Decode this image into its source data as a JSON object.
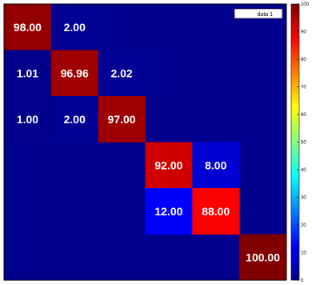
{
  "chart_data": {
    "type": "heatmap",
    "title": "",
    "xlabel": "",
    "ylabel": "",
    "rows": 6,
    "cols": 6,
    "background_value": 0,
    "cells": [
      {
        "row": 0,
        "col": 0,
        "value": 98.0,
        "label": "98.00"
      },
      {
        "row": 0,
        "col": 1,
        "value": 2.0,
        "label": "2.00"
      },
      {
        "row": 1,
        "col": 0,
        "value": 1.01,
        "label": "1.01"
      },
      {
        "row": 1,
        "col": 1,
        "value": 96.96,
        "label": "96.96"
      },
      {
        "row": 1,
        "col": 2,
        "value": 2.02,
        "label": "2.02"
      },
      {
        "row": 2,
        "col": 0,
        "value": 1.0,
        "label": "1.00"
      },
      {
        "row": 2,
        "col": 1,
        "value": 2.0,
        "label": "2.00"
      },
      {
        "row": 2,
        "col": 2,
        "value": 97.0,
        "label": "97.00"
      },
      {
        "row": 3,
        "col": 3,
        "value": 92.0,
        "label": "92.00"
      },
      {
        "row": 3,
        "col": 4,
        "value": 8.0,
        "label": "8.00"
      },
      {
        "row": 4,
        "col": 3,
        "value": 12.0,
        "label": "12.00"
      },
      {
        "row": 4,
        "col": 4,
        "value": 88.0,
        "label": "88.00"
      },
      {
        "row": 5,
        "col": 5,
        "value": 100.0,
        "label": "100.00"
      }
    ],
    "colorbar": {
      "range": [
        0,
        100
      ],
      "ticks": [
        "0",
        "10",
        "20",
        "30",
        "40",
        "50",
        "60",
        "70",
        "80",
        "90",
        "100"
      ]
    },
    "legend": {
      "label": "data 1",
      "placement": "top-right"
    },
    "colormap": "jet"
  }
}
